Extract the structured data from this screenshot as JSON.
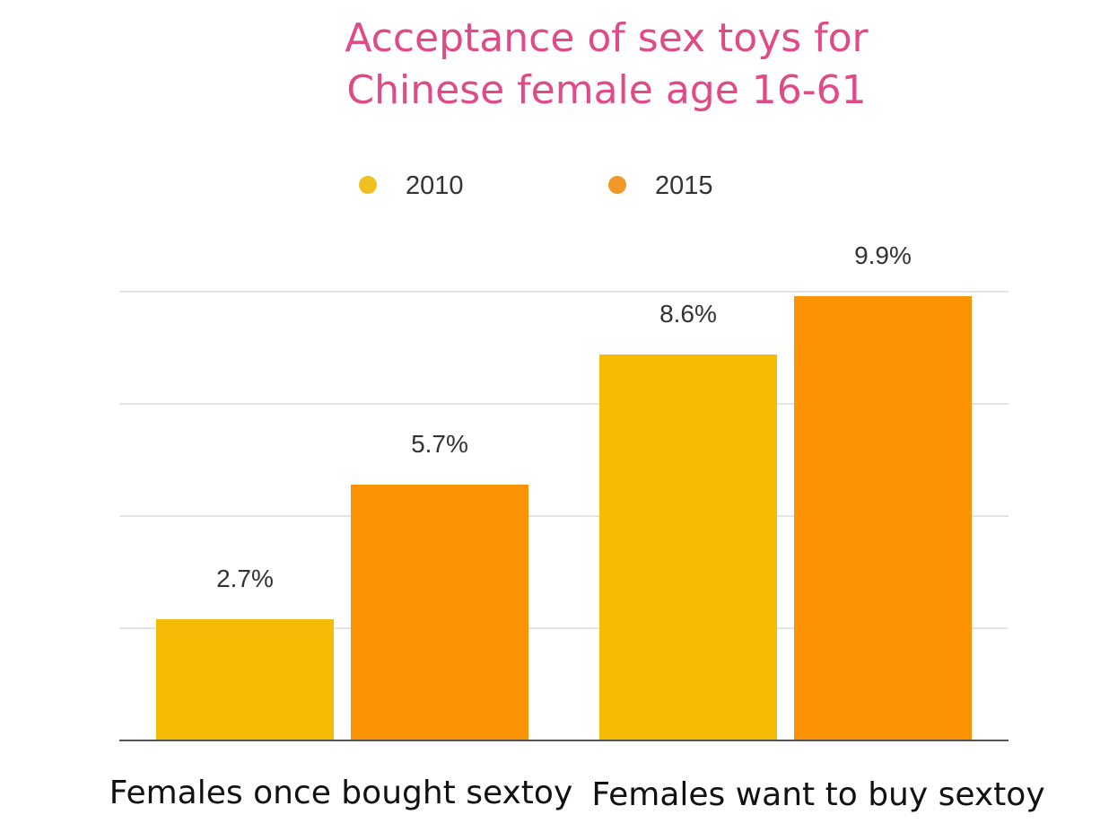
{
  "chart_data": {
    "type": "bar",
    "title_lines": [
      "Acceptance of sex toys for",
      "Chinese female age 16-61"
    ],
    "categories": [
      "Females once bought sextoy",
      "Females want to buy sextoy"
    ],
    "series": [
      {
        "name": "2010",
        "values": [
          2.7,
          8.6
        ],
        "labels": [
          "2.7%",
          "8.6%"
        ],
        "color": "#f5bb05"
      },
      {
        "name": "2015",
        "values": [
          5.7,
          9.9
        ],
        "labels": [
          "5.7%",
          "9.9%"
        ],
        "color": "#fc9304"
      }
    ],
    "legend_dot_colors": [
      "#f0c020",
      "#f0982a"
    ],
    "grid": true,
    "legend_position": "top"
  }
}
